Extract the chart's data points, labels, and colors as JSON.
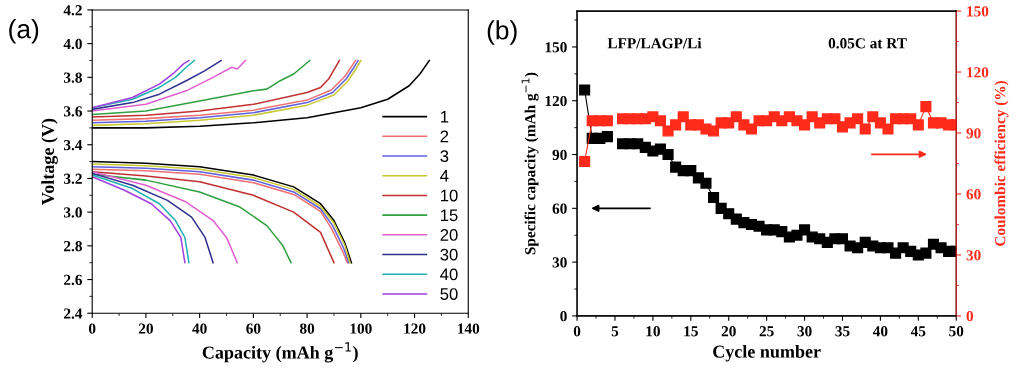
{
  "chart_data": [
    {
      "type": "line",
      "title": "(a)",
      "xlabel": "Capacity (mAh g$^{−1}$)",
      "ylabel": "Voltage (V)",
      "xlim": [
        0,
        140
      ],
      "xticks": [
        0,
        20,
        40,
        60,
        80,
        100,
        120,
        140
      ],
      "ylim": [
        2.4,
        4.2
      ],
      "yticks": [
        2.4,
        2.6,
        2.8,
        {
          "value": 3,
          "label": "3.0"
        },
        3.2,
        3.4,
        3.6,
        3.8,
        {
          "value": 4,
          "label": "4.0"
        },
        4.2
      ],
      "legend": "right",
      "grid": false,
      "series": [
        {
          "name": "1",
          "color": "#000000",
          "x": [
            0,
            20,
            40,
            60,
            80,
            100,
            110,
            118,
            122,
            125.5
          ],
          "values": [
            3.5,
            3.5,
            3.51,
            3.53,
            3.56,
            3.62,
            3.67,
            3.75,
            3.82,
            3.9
          ]
        },
        {
          "color": "#000000",
          "x": [
            0,
            20,
            40,
            60,
            75,
            85,
            90,
            94,
            96.5
          ],
          "values": [
            3.3,
            3.29,
            3.27,
            3.22,
            3.15,
            3.05,
            2.95,
            2.82,
            2.7
          ]
        },
        {
          "name": "2",
          "color": "#f07070",
          "x": [
            0,
            20,
            40,
            60,
            80,
            89,
            94,
            97,
            98
          ],
          "values": [
            3.545,
            3.555,
            3.575,
            3.605,
            3.665,
            3.725,
            3.805,
            3.875,
            3.9
          ]
        },
        {
          "color": "#f07070",
          "x": [
            0,
            20,
            40,
            60,
            75,
            85,
            89,
            93,
            95
          ],
          "values": [
            3.255,
            3.245,
            3.225,
            3.175,
            3.105,
            3.005,
            2.905,
            2.775,
            2.7
          ]
        },
        {
          "name": "3",
          "color": "#6060e0",
          "x": [
            0,
            20,
            40,
            60,
            80,
            89.5,
            94.5,
            97.5,
            99
          ],
          "values": [
            3.53,
            3.54,
            3.56,
            3.59,
            3.65,
            3.71,
            3.79,
            3.86,
            3.9
          ]
        },
        {
          "color": "#6060e0",
          "x": [
            0,
            20,
            40,
            60,
            75,
            85,
            89.5,
            93.5,
            95.5
          ],
          "values": [
            3.27,
            3.26,
            3.24,
            3.19,
            3.12,
            3.02,
            2.92,
            2.79,
            2.7
          ]
        },
        {
          "name": "4",
          "color": "#c8c830",
          "x": [
            0,
            20,
            40,
            60,
            80,
            90,
            95,
            98,
            100
          ],
          "values": [
            3.515,
            3.525,
            3.545,
            3.575,
            3.635,
            3.695,
            3.775,
            3.845,
            3.9
          ]
        },
        {
          "color": "#c8c830",
          "x": [
            0,
            20,
            40,
            60,
            75,
            85,
            90,
            94,
            96
          ],
          "values": [
            3.285,
            3.275,
            3.255,
            3.205,
            3.135,
            3.035,
            2.935,
            2.805,
            2.7
          ]
        },
        {
          "name": "10",
          "color": "#c03030",
          "x": [
            0,
            20,
            40,
            60,
            80,
            85,
            88,
            92
          ],
          "values": [
            3.565,
            3.575,
            3.6,
            3.64,
            3.71,
            3.74,
            3.79,
            3.9
          ]
        },
        {
          "color": "#c03030",
          "x": [
            0,
            20,
            40,
            60,
            75,
            85,
            90
          ],
          "values": [
            3.24,
            3.215,
            3.18,
            3.1,
            3.0,
            2.88,
            2.7
          ]
        },
        {
          "name": "15",
          "color": "#30a040",
          "x": [
            0,
            20,
            40,
            60,
            65,
            70,
            75,
            81
          ],
          "values": [
            3.58,
            3.6,
            3.66,
            3.72,
            3.73,
            3.78,
            3.82,
            3.9
          ]
        },
        {
          "color": "#30a040",
          "x": [
            0,
            20,
            40,
            55,
            65,
            71,
            74
          ],
          "values": [
            3.225,
            3.19,
            3.12,
            3.03,
            2.92,
            2.8,
            2.7
          ]
        },
        {
          "name": "20",
          "color": "#e060d0",
          "x": [
            0,
            20,
            35,
            45,
            52,
            54,
            57
          ],
          "values": [
            3.6,
            3.64,
            3.72,
            3.8,
            3.86,
            3.85,
            3.9
          ]
        },
        {
          "color": "#e060d0",
          "x": [
            0,
            20,
            35,
            45,
            50,
            54
          ],
          "values": [
            3.24,
            3.16,
            3.06,
            2.95,
            2.85,
            2.7
          ]
        },
        {
          "name": "30",
          "color": "#303090",
          "x": [
            0,
            15,
            25,
            35,
            42,
            48
          ],
          "values": [
            3.61,
            3.65,
            3.7,
            3.78,
            3.84,
            3.9
          ]
        },
        {
          "color": "#303090",
          "x": [
            0,
            15,
            28,
            37,
            42,
            45
          ],
          "values": [
            3.23,
            3.16,
            3.07,
            2.97,
            2.85,
            2.7
          ]
        },
        {
          "name": "40",
          "color": "#20b0b0",
          "x": [
            0,
            15,
            25,
            31,
            35,
            38
          ],
          "values": [
            3.62,
            3.67,
            3.74,
            3.8,
            3.86,
            3.9
          ]
        },
        {
          "color": "#20b0b0",
          "x": [
            0,
            15,
            25,
            31,
            34.5,
            36
          ],
          "values": [
            3.22,
            3.14,
            3.05,
            2.95,
            2.85,
            2.7
          ]
        },
        {
          "name": "50",
          "color": "#a040e0",
          "x": [
            0,
            15,
            25,
            30,
            34,
            36
          ],
          "values": [
            3.62,
            3.68,
            3.76,
            3.82,
            3.88,
            3.9
          ]
        },
        {
          "color": "#a040e0",
          "x": [
            0,
            12,
            22,
            29,
            33,
            34.5
          ],
          "values": [
            3.21,
            3.13,
            3.05,
            2.95,
            2.85,
            2.7
          ]
        }
      ]
    },
    {
      "type": "line",
      "title": "(b)",
      "xlabel": "Cycle number",
      "ylabel": "Specific capacity (mAh g$^{−1}$)",
      "y2label": "Coulombic efficiency (%)",
      "annotations": [
        "LFP/LAGP/Li",
        "0.05C at RT"
      ],
      "xlim": [
        0,
        50
      ],
      "xticks": [
        0,
        5,
        10,
        15,
        20,
        25,
        30,
        35,
        40,
        45,
        50
      ],
      "ylim": [
        0,
        170
      ],
      "yticks": [
        0,
        30,
        60,
        90,
        120,
        150
      ],
      "y2lim": [
        0,
        150
      ],
      "y2ticks": [
        0,
        30,
        60,
        90,
        120,
        150
      ],
      "marker": "square",
      "legend": false,
      "grid": false,
      "x": [
        1,
        2,
        3,
        4,
        5,
        6,
        7,
        8,
        9,
        10,
        11,
        12,
        13,
        14,
        15,
        16,
        17,
        18,
        19,
        20,
        21,
        22,
        23,
        24,
        25,
        26,
        27,
        28,
        29,
        30,
        31,
        32,
        33,
        34,
        35,
        36,
        37,
        38,
        39,
        40,
        41,
        42,
        43,
        44,
        45,
        46,
        47,
        48,
        49,
        50
      ],
      "series": [
        {
          "color": "#000000",
          "values": [
            126,
            99,
            99,
            100,
            null,
            96,
            96,
            96,
            94,
            92,
            93,
            90,
            83,
            81,
            81,
            77,
            74,
            66,
            60,
            57,
            54,
            52,
            51,
            50,
            48,
            48,
            47,
            44,
            45,
            48,
            44,
            43,
            41,
            43,
            43,
            39,
            38,
            41,
            39,
            38,
            38,
            35,
            38,
            36,
            34,
            35,
            40,
            38,
            36,
            36
          ]
        },
        {
          "color": "#ff2a1a",
          "axis": "y2",
          "values": [
            76,
            96,
            96,
            96,
            null,
            97,
            97,
            97,
            97,
            98,
            96,
            91,
            94,
            98,
            94,
            94,
            92,
            91,
            95,
            95,
            98,
            94,
            92,
            96,
            96,
            98,
            96,
            98,
            96,
            94,
            98,
            95,
            97,
            97,
            93,
            95,
            97,
            92,
            98,
            95,
            92,
            97,
            97,
            97,
            94,
            103,
            95,
            95,
            94,
            94
          ]
        }
      ]
    }
  ]
}
